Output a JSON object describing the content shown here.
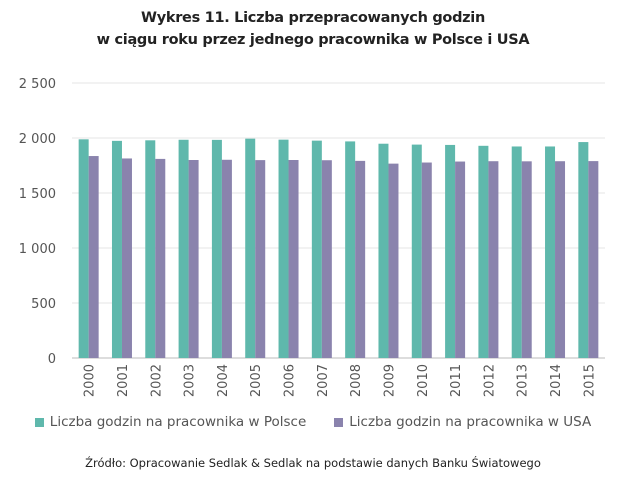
{
  "chart_data": {
    "type": "bar",
    "title": [
      "Wykres 11. Liczba przepracowanych godzin",
      "w ciągu roku przez jednego pracownika w Polsce i USA"
    ],
    "categories": [
      "2000",
      "2001",
      "2002",
      "2003",
      "2004",
      "2005",
      "2006",
      "2007",
      "2008",
      "2009",
      "2010",
      "2011",
      "2012",
      "2013",
      "2014",
      "2015"
    ],
    "series": [
      {
        "name": "Liczba godzin na pracownika w Polsce",
        "color": "#5fb8ac",
        "values": [
          1988,
          1974,
          1979,
          1984,
          1983,
          1994,
          1985,
          1976,
          1969,
          1948,
          1940,
          1937,
          1929,
          1923,
          1923,
          1963
        ]
      },
      {
        "name": "Liczba godzin na pracownika w USA",
        "color": "#8a83ad",
        "values": [
          1836,
          1814,
          1810,
          1800,
          1802,
          1799,
          1800,
          1798,
          1792,
          1767,
          1777,
          1786,
          1789,
          1788,
          1789,
          1790
        ]
      }
    ],
    "ylim": [
      0,
      2500
    ],
    "yticks": [
      "0",
      "500",
      "1 000",
      "1 500",
      "2 000",
      "2 500"
    ],
    "grid": true,
    "legend": "bottom",
    "source": "Źródło: Opracowanie Sedlak & Sedlak na podstawie danych Banku Światowego"
  }
}
